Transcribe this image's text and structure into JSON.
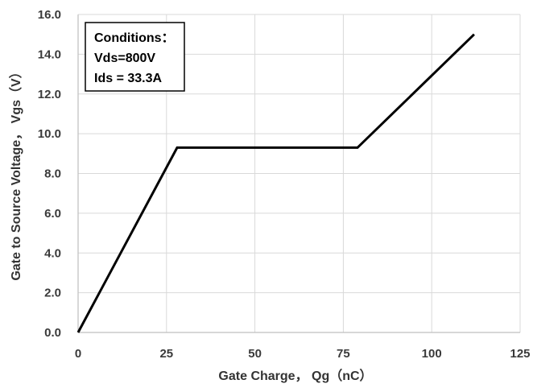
{
  "chart_data": {
    "type": "line",
    "xlabel": "Gate Charge，  Qg（nC）",
    "ylabel": "Gate to Source Voltage，  Vgs（V）",
    "xlim": [
      0,
      125
    ],
    "ylim": [
      0,
      16
    ],
    "x_ticks": [
      0,
      25,
      50,
      75,
      100,
      125
    ],
    "y_ticks": [
      0.0,
      2.0,
      4.0,
      6.0,
      8.0,
      10.0,
      12.0,
      14.0,
      16.0
    ],
    "x_tick_labels": [
      "0",
      "25",
      "50",
      "75",
      "100",
      "125"
    ],
    "y_tick_labels": [
      "0.0",
      "2.0",
      "4.0",
      "6.0",
      "8.0",
      "10.0",
      "12.0",
      "14.0",
      "16.0"
    ],
    "grid": true,
    "series": [
      {
        "color": "#000000",
        "x": [
          0,
          28,
          79,
          112
        ],
        "y": [
          0,
          9.3,
          9.3,
          15.0
        ]
      }
    ],
    "annotation": {
      "lines": [
        "Conditions：",
        "Vds=800V",
        "Ids = 33.3A"
      ],
      "placement": "top-left"
    }
  }
}
